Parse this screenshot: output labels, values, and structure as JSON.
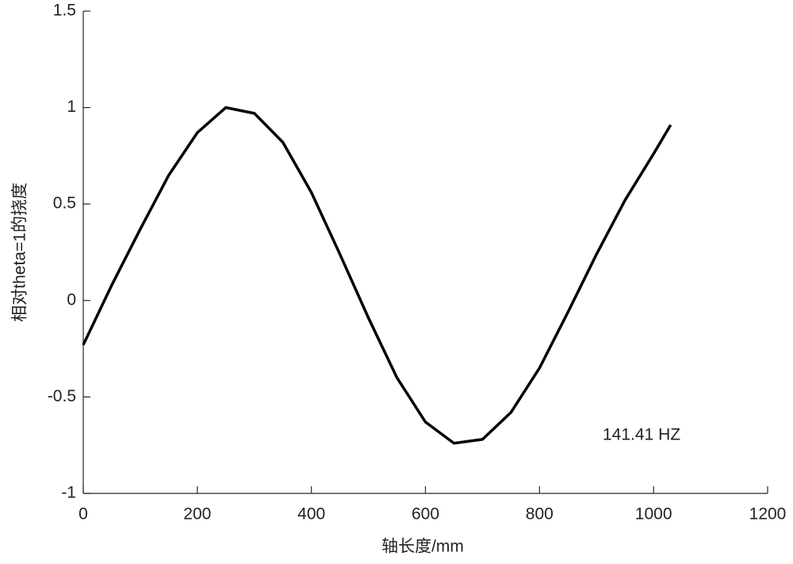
{
  "chart_data": {
    "type": "line",
    "x_label": "轴长度/mm",
    "y_label": "相对theta=1的挠度",
    "annotation": "141.41 HZ",
    "x": [
      0,
      50,
      100,
      150,
      200,
      250,
      300,
      350,
      400,
      450,
      500,
      550,
      600,
      650,
      700,
      750,
      800,
      850,
      900,
      950,
      1000,
      1030
    ],
    "series": [
      {
        "color": "#000000",
        "values": [
          -0.23,
          0.08,
          0.37,
          0.65,
          0.87,
          1.0,
          0.97,
          0.82,
          0.56,
          0.24,
          -0.09,
          -0.4,
          -0.63,
          -0.74,
          -0.72,
          -0.58,
          -0.35,
          -0.06,
          0.24,
          0.52,
          0.76,
          0.91
        ]
      }
    ],
    "xlim": [
      0,
      1200
    ],
    "xticks": [
      0,
      200,
      400,
      600,
      800,
      1000,
      1200
    ],
    "ylim": [
      -1,
      1.5
    ],
    "yticks": [
      -1,
      -0.5,
      0,
      0.5,
      1,
      1.5
    ],
    "grid": false
  }
}
